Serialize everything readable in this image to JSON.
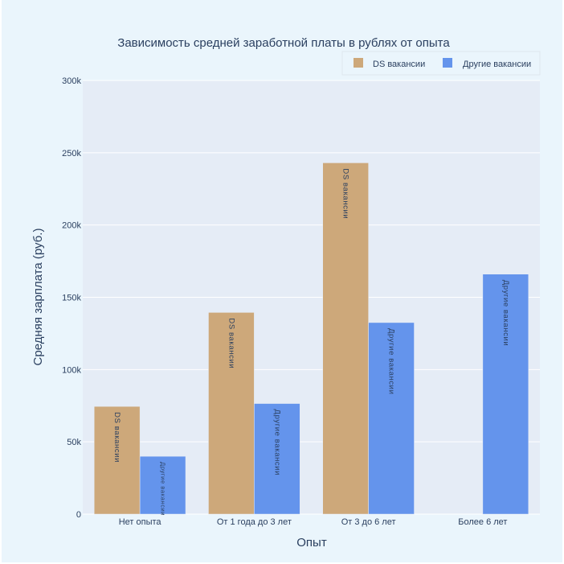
{
  "chart_data": {
    "type": "bar",
    "title": "Зависимость средней заработной платы в рублях от опыта",
    "xlabel": "Опыт",
    "ylabel": "Средняя зарплата (руб.)",
    "categories": [
      "Нет опыта",
      "От 1 года до 3 лет",
      "От 3 до 6 лет",
      "Более 6 лет"
    ],
    "series": [
      {
        "name": "DS вакансии",
        "color": "#cda87a",
        "values": [
          74500,
          139500,
          243000,
          null
        ]
      },
      {
        "name": "Другие вакансии",
        "color": "#6494ec",
        "values": [
          40000,
          76500,
          132500,
          166000
        ]
      }
    ],
    "ylim": [
      0,
      300000
    ],
    "yticks": [
      0,
      50000,
      100000,
      150000,
      200000,
      250000,
      300000
    ],
    "ytick_labels": [
      "0",
      "50k",
      "100k",
      "150k",
      "200k",
      "250k",
      "300k"
    ],
    "grid": true,
    "legend_position": "top-right",
    "plot_bg": "#e5ecf6",
    "paper_bg": "#eaf5fc"
  }
}
